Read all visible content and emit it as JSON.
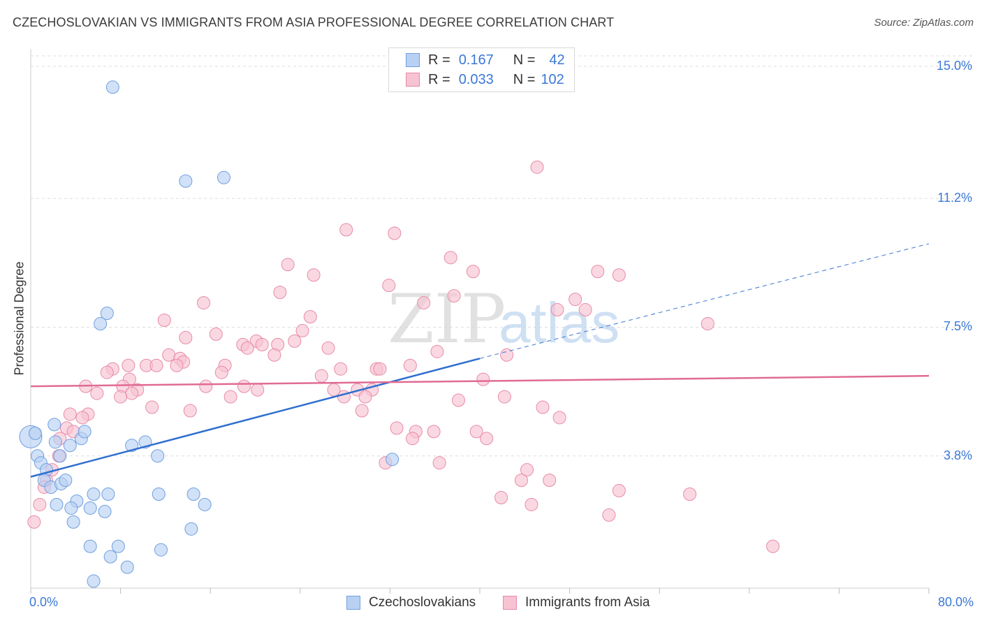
{
  "header": {
    "title": "CZECHOSLOVAKIAN VS IMMIGRANTS FROM ASIA PROFESSIONAL DEGREE CORRELATION CHART",
    "source": "Source: ZipAtlas.com"
  },
  "watermark": {
    "zip": "ZIP",
    "atlas": "atlas"
  },
  "legend": {
    "rows": [
      {
        "r_label": "R =",
        "r_value": "0.167",
        "n_label": "N =",
        "n_value": "42"
      },
      {
        "r_label": "R =",
        "r_value": "0.033",
        "n_label": "N =",
        "n_value": "102"
      }
    ]
  },
  "colors": {
    "blue_fill": "#b8d1f3",
    "blue_stroke": "#6f9fe0",
    "blue_line": "#2f6fcf",
    "pink_fill": "#f7c3d3",
    "pink_stroke": "#e88aa8",
    "pink_line": "#e06b94",
    "tick_text": "#3b78d6",
    "grid": "#dddddd"
  },
  "chart_data": {
    "type": "scatter",
    "title": "CZECHOSLOVAKIAN VS IMMIGRANTS FROM ASIA PROFESSIONAL DEGREE CORRELATION CHART",
    "xlabel": "",
    "ylabel": "Professional Degree",
    "xlim": [
      0,
      80
    ],
    "ylim": [
      0,
      15.5
    ],
    "x_tick_labels": [
      "0.0%",
      "80.0%"
    ],
    "y_tick_values": [
      3.8,
      7.5,
      11.2,
      15.0
    ],
    "y_tick_labels": [
      "3.8%",
      "7.5%",
      "11.2%",
      "15.0%"
    ],
    "grid": true,
    "series": [
      {
        "name": "Czechoslovakians",
        "color": "#b8d1f3",
        "points": [
          [
            7.3,
            14.4
          ],
          [
            13.8,
            11.7
          ],
          [
            17.2,
            11.8
          ],
          [
            6.8,
            7.9
          ],
          [
            6.2,
            7.6
          ],
          [
            0.0,
            4.35
          ],
          [
            0.6,
            3.8
          ],
          [
            0.9,
            3.6
          ],
          [
            1.4,
            3.4
          ],
          [
            1.2,
            3.1
          ],
          [
            1.8,
            2.9
          ],
          [
            2.2,
            4.2
          ],
          [
            2.6,
            3.8
          ],
          [
            2.7,
            3.0
          ],
          [
            3.1,
            3.1
          ],
          [
            3.5,
            4.1
          ],
          [
            4.5,
            4.3
          ],
          [
            4.8,
            4.5
          ],
          [
            2.3,
            2.4
          ],
          [
            4.1,
            2.5
          ],
          [
            3.6,
            2.3
          ],
          [
            3.8,
            1.9
          ],
          [
            5.6,
            2.7
          ],
          [
            5.3,
            2.3
          ],
          [
            6.6,
            2.2
          ],
          [
            6.9,
            2.7
          ],
          [
            5.3,
            1.2
          ],
          [
            7.1,
            0.9
          ],
          [
            7.8,
            1.2
          ],
          [
            8.6,
            0.6
          ],
          [
            5.6,
            0.2
          ],
          [
            14.3,
            1.7
          ],
          [
            14.5,
            2.7
          ],
          [
            15.5,
            2.4
          ],
          [
            11.4,
            2.7
          ],
          [
            11.6,
            1.1
          ],
          [
            11.3,
            3.8
          ],
          [
            9.0,
            4.1
          ],
          [
            10.2,
            4.2
          ],
          [
            32.2,
            3.7
          ],
          [
            2.1,
            4.7
          ],
          [
            0.4,
            4.45
          ]
        ]
      },
      {
        "name": "Immigrants from Asia",
        "color": "#f7c3d3",
        "points": [
          [
            45.1,
            12.1
          ],
          [
            28.1,
            10.3
          ],
          [
            32.4,
            10.2
          ],
          [
            22.9,
            9.3
          ],
          [
            37.4,
            9.5
          ],
          [
            39.4,
            9.1
          ],
          [
            50.5,
            9.1
          ],
          [
            52.4,
            9.0
          ],
          [
            25.2,
            9.0
          ],
          [
            31.9,
            8.7
          ],
          [
            22.2,
            8.5
          ],
          [
            37.7,
            8.4
          ],
          [
            35.0,
            8.2
          ],
          [
            48.5,
            8.3
          ],
          [
            49.4,
            8.0
          ],
          [
            46.9,
            8.0
          ],
          [
            15.4,
            8.2
          ],
          [
            24.9,
            7.8
          ],
          [
            11.9,
            7.7
          ],
          [
            60.3,
            7.6
          ],
          [
            24.2,
            7.4
          ],
          [
            16.5,
            7.3
          ],
          [
            13.8,
            7.2
          ],
          [
            23.5,
            7.1
          ],
          [
            20.1,
            7.1
          ],
          [
            22.0,
            7.0
          ],
          [
            18.9,
            7.0
          ],
          [
            19.3,
            6.9
          ],
          [
            26.5,
            6.9
          ],
          [
            20.6,
            7.0
          ],
          [
            36.2,
            6.8
          ],
          [
            42.4,
            6.7
          ],
          [
            21.7,
            6.7
          ],
          [
            12.3,
            6.7
          ],
          [
            13.3,
            6.6
          ],
          [
            17.3,
            6.4
          ],
          [
            13.6,
            6.5
          ],
          [
            10.3,
            6.4
          ],
          [
            11.2,
            6.4
          ],
          [
            8.7,
            6.4
          ],
          [
            13.0,
            6.4
          ],
          [
            7.3,
            6.3
          ],
          [
            6.8,
            6.2
          ],
          [
            8.8,
            6.0
          ],
          [
            17.0,
            6.2
          ],
          [
            27.6,
            6.3
          ],
          [
            30.8,
            6.3
          ],
          [
            33.8,
            6.4
          ],
          [
            25.9,
            6.1
          ],
          [
            40.3,
            6.0
          ],
          [
            8.2,
            5.8
          ],
          [
            15.6,
            5.8
          ],
          [
            9.5,
            5.7
          ],
          [
            9.0,
            5.6
          ],
          [
            5.9,
            5.6
          ],
          [
            8.0,
            5.5
          ],
          [
            17.8,
            5.5
          ],
          [
            20.2,
            5.7
          ],
          [
            27.0,
            5.7
          ],
          [
            29.1,
            5.7
          ],
          [
            30.4,
            5.7
          ],
          [
            27.9,
            5.5
          ],
          [
            29.8,
            5.5
          ],
          [
            42.2,
            5.5
          ],
          [
            38.1,
            5.4
          ],
          [
            10.8,
            5.2
          ],
          [
            14.2,
            5.1
          ],
          [
            29.5,
            5.1
          ],
          [
            45.6,
            5.2
          ],
          [
            3.5,
            5.0
          ],
          [
            5.1,
            5.0
          ],
          [
            4.6,
            4.9
          ],
          [
            47.1,
            4.9
          ],
          [
            3.2,
            4.6
          ],
          [
            3.8,
            4.5
          ],
          [
            32.6,
            4.6
          ],
          [
            34.3,
            4.5
          ],
          [
            35.9,
            4.5
          ],
          [
            39.7,
            4.5
          ],
          [
            40.6,
            4.3
          ],
          [
            34.0,
            4.3
          ],
          [
            2.6,
            4.3
          ],
          [
            2.5,
            3.8
          ],
          [
            1.9,
            3.4
          ],
          [
            1.4,
            3.1
          ],
          [
            1.2,
            2.9
          ],
          [
            31.6,
            3.6
          ],
          [
            36.4,
            3.6
          ],
          [
            44.2,
            3.4
          ],
          [
            43.7,
            3.1
          ],
          [
            46.2,
            3.1
          ],
          [
            41.9,
            2.6
          ],
          [
            44.6,
            2.4
          ],
          [
            52.4,
            2.8
          ],
          [
            58.7,
            2.7
          ],
          [
            51.5,
            2.1
          ],
          [
            0.8,
            2.4
          ],
          [
            0.3,
            1.9
          ],
          [
            66.1,
            1.2
          ],
          [
            31.1,
            6.3
          ],
          [
            4.9,
            5.8
          ],
          [
            19.0,
            5.8
          ]
        ]
      }
    ],
    "trendlines": [
      {
        "series": "Czechoslovakians",
        "from": [
          0,
          3.2
        ],
        "to": [
          40,
          6.6
        ],
        "dashed_to": [
          80,
          9.9
        ]
      },
      {
        "series": "Immigrants from Asia",
        "from": [
          0,
          5.8
        ],
        "to": [
          80,
          6.1
        ]
      }
    ]
  },
  "bottom_legend": {
    "items": [
      {
        "label": "Czechoslovakians"
      },
      {
        "label": "Immigrants from Asia"
      }
    ]
  }
}
